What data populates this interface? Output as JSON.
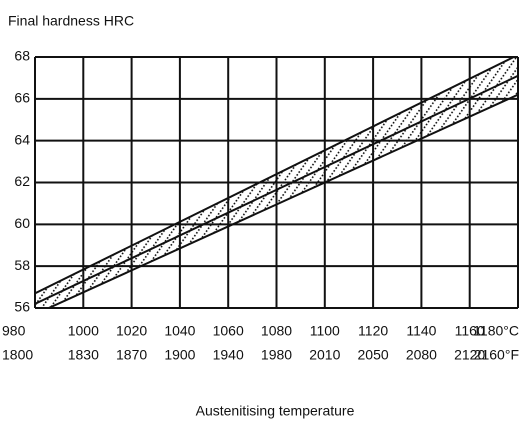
{
  "chart_data": {
    "type": "band",
    "title": "Final hardness HRC",
    "x_label": "Austenitising temperature",
    "xlim": [
      980,
      1180
    ],
    "xticks": [
      980,
      1000,
      1020,
      1040,
      1060,
      1080,
      1100,
      1120,
      1140,
      1160,
      {
        "value": 1180,
        "label": "1180°C"
      }
    ],
    "x2ticks": [
      1800,
      1830,
      1870,
      1900,
      1940,
      1980,
      2010,
      2050,
      2080,
      2120,
      {
        "value": 2160,
        "label": "2160°F"
      }
    ],
    "ylim": [
      56,
      68
    ],
    "yticks": [
      56,
      58,
      60,
      62,
      64,
      66,
      68
    ],
    "grid": true,
    "color": "#111111",
    "x": [
      980,
      1180
    ],
    "series": [
      {
        "color": "#111111",
        "values": [
          56.7,
          68.1
        ]
      },
      {
        "color": "#111111",
        "values": [
          56.2,
          67.1
        ]
      },
      {
        "color": "#111111",
        "values": [
          55.7,
          66.2
        ]
      }
    ]
  }
}
